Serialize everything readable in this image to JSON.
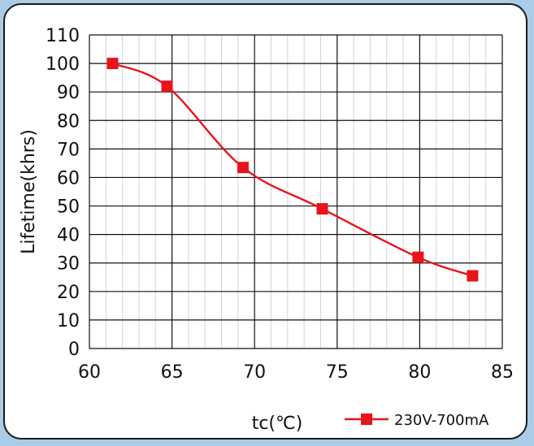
{
  "chart_data": {
    "type": "line",
    "title": "",
    "xlabel": "tc(℃)",
    "ylabel": "Lifetime(khrs)",
    "xlim": [
      60,
      85
    ],
    "ylim": [
      0,
      110
    ],
    "x_ticks": [
      60,
      65,
      70,
      75,
      80,
      85
    ],
    "y_ticks": [
      0,
      10,
      20,
      30,
      40,
      50,
      60,
      70,
      80,
      90,
      100,
      110
    ],
    "grid": true,
    "legend_position": "bottom-right",
    "series": [
      {
        "name": "230V-700mA",
        "color": "#e8141b",
        "marker": "square",
        "x": [
          61.4,
          64.7,
          69.3,
          74.1,
          79.9,
          83.2
        ],
        "y": [
          100,
          92,
          63.5,
          49,
          32,
          25.5
        ]
      }
    ]
  }
}
